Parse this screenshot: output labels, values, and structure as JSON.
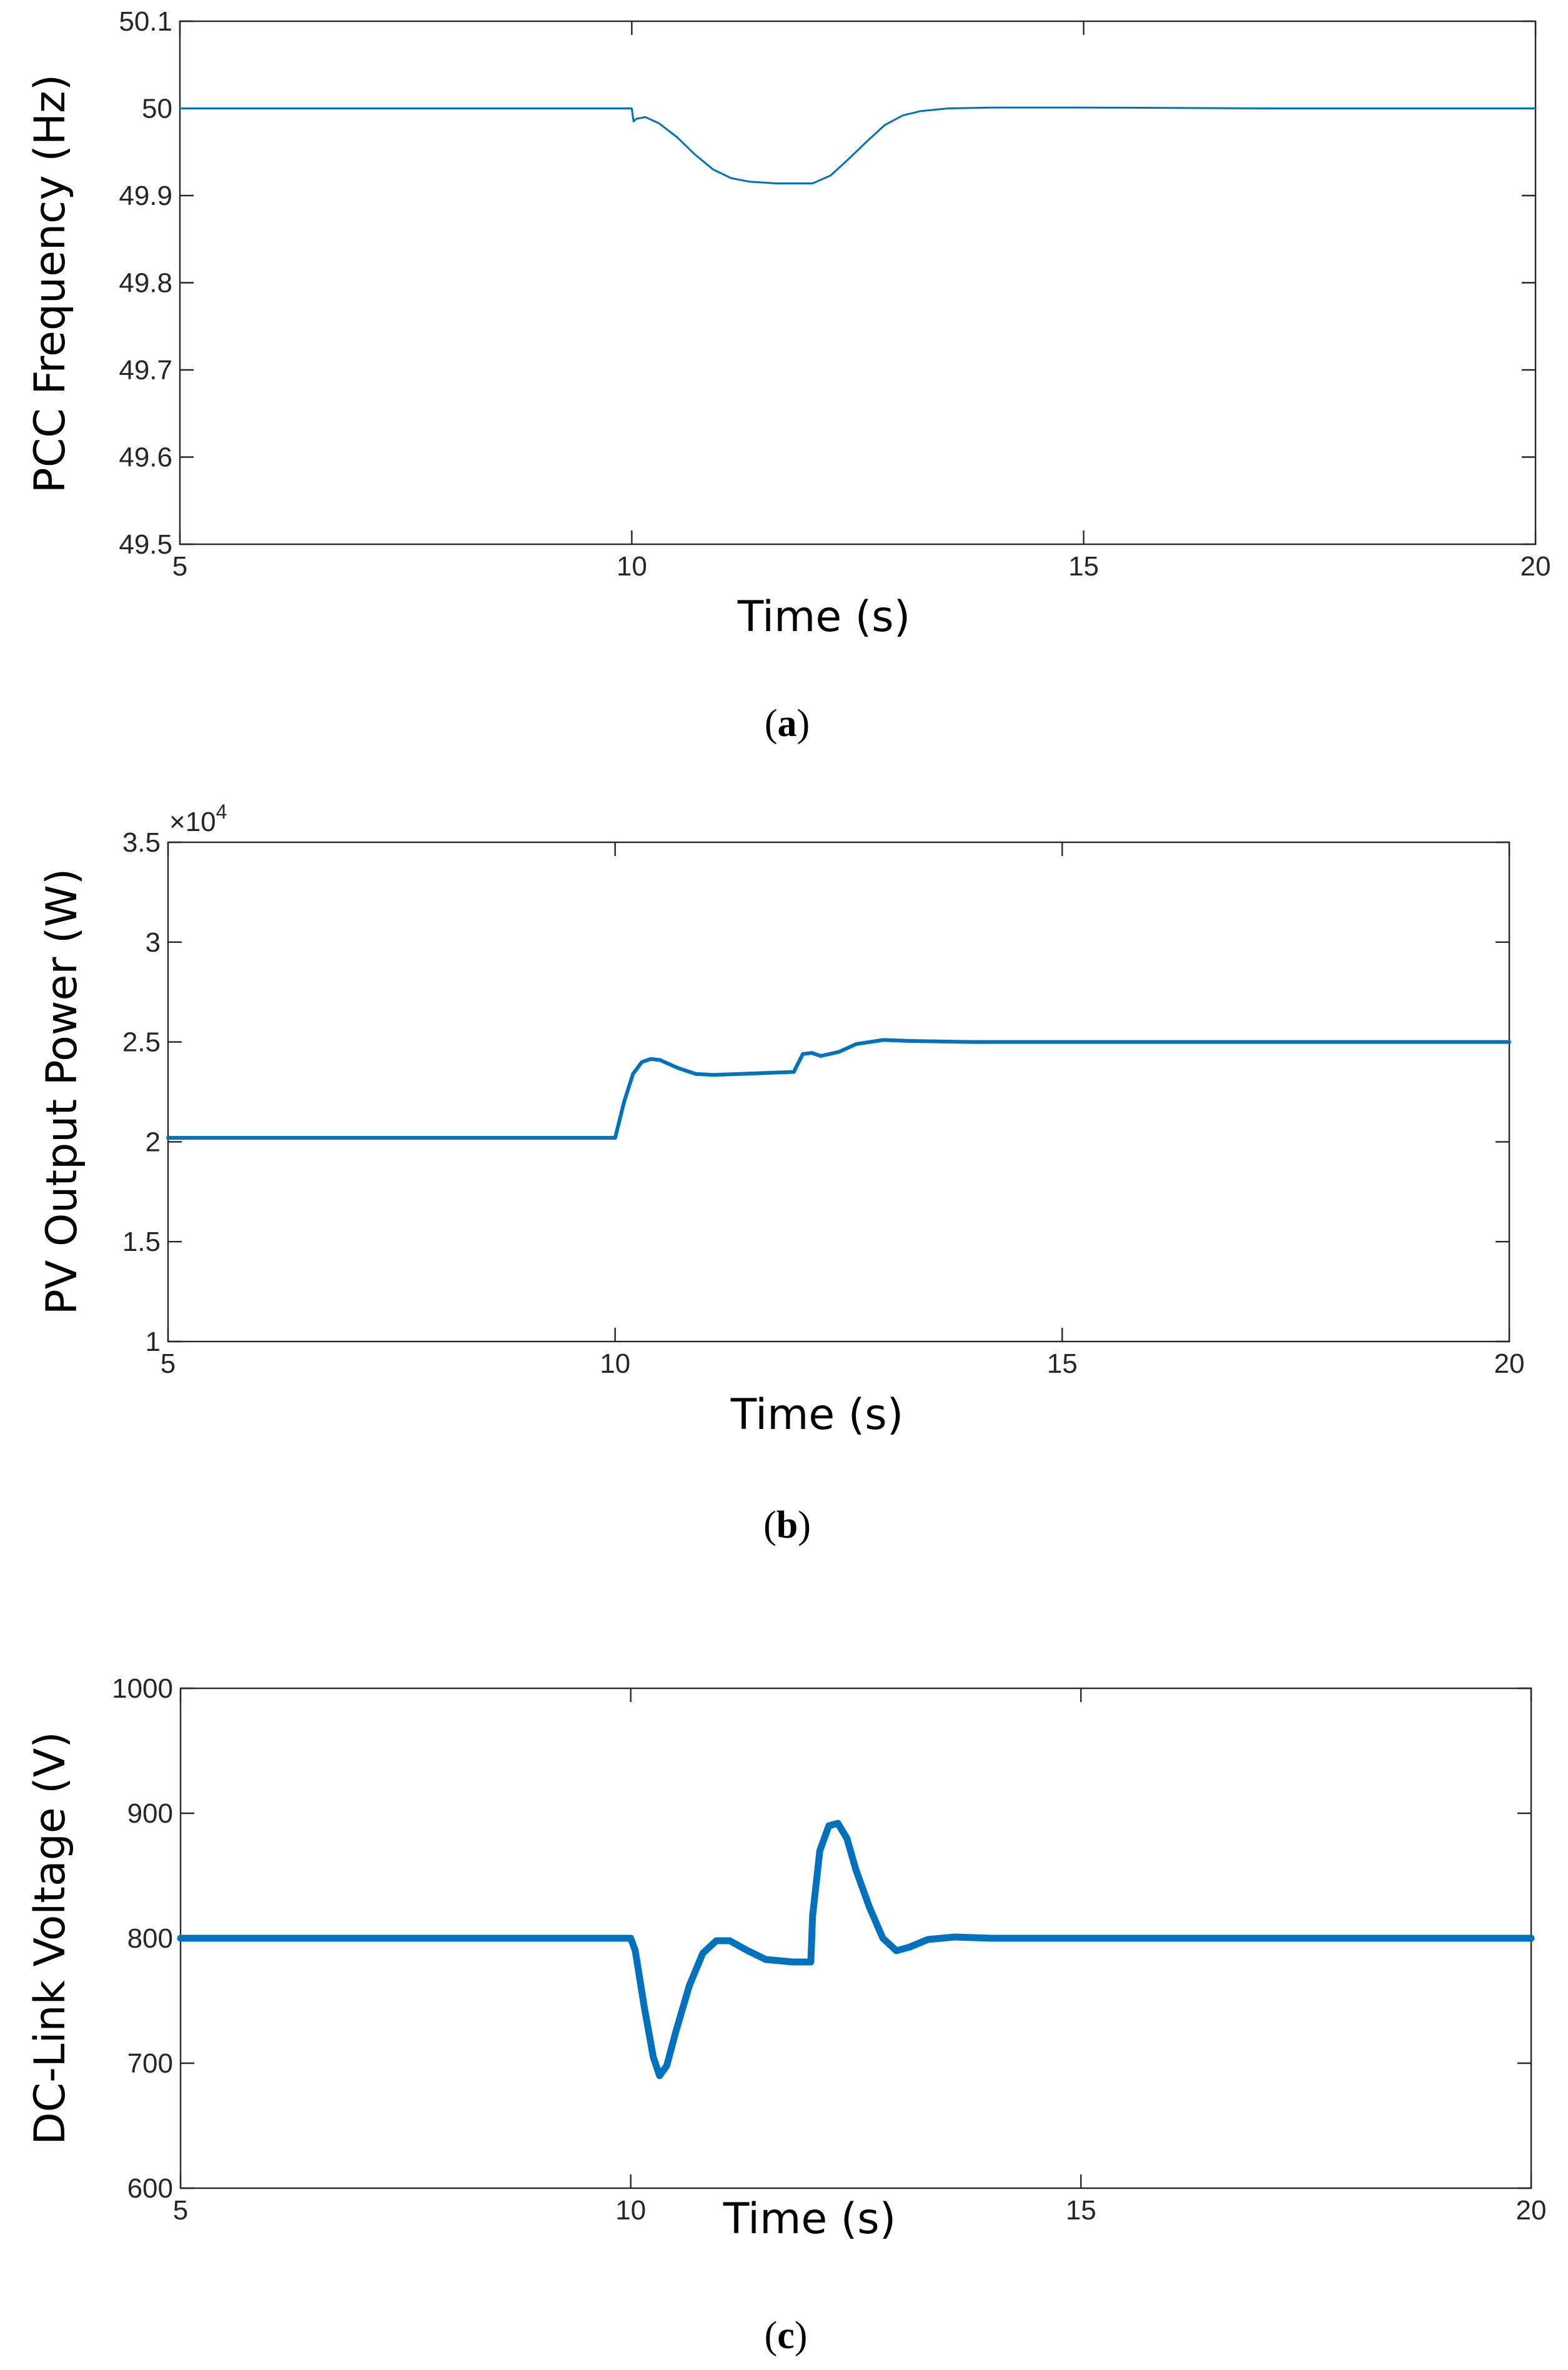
{
  "chart_data": [
    {
      "type": "line",
      "id": "a",
      "title": "",
      "xlabel": "Time (s)",
      "ylabel": "PCC Frequency (Hz)",
      "caption": "a",
      "xlim": [
        5,
        20
      ],
      "ylim": [
        49.5,
        50.1
      ],
      "xticks": [
        5,
        10,
        15,
        20
      ],
      "yticks": [
        49.5,
        49.6,
        49.7,
        49.8,
        49.9,
        50,
        50.1
      ],
      "xtick_labels": [
        "5",
        "10",
        "15",
        "20"
      ],
      "ytick_labels": [
        "49.5",
        "49.6",
        "49.7",
        "49.8",
        "49.9",
        "50",
        "50.1"
      ],
      "exponent_label": "",
      "color": "#0072BD",
      "series": [
        {
          "name": "PCC Frequency",
          "x": [
            5,
            10,
            10.02,
            10.05,
            10.15,
            10.3,
            10.5,
            10.7,
            10.9,
            11.1,
            11.3,
            11.6,
            12.0,
            12.2,
            12.4,
            12.6,
            12.8,
            13.0,
            13.2,
            13.5,
            14.0,
            15.0,
            17.0,
            20
          ],
          "values": [
            50.0,
            50.0,
            49.985,
            49.988,
            49.99,
            49.983,
            49.967,
            49.947,
            49.93,
            49.92,
            49.916,
            49.914,
            49.914,
            49.923,
            49.942,
            49.962,
            49.981,
            49.992,
            49.997,
            50.0,
            50.001,
            50.001,
            50.0,
            50.0
          ]
        }
      ]
    },
    {
      "type": "line",
      "id": "b",
      "title": "",
      "xlabel": "Time (s)",
      "ylabel": "PV Output Power (W)",
      "caption": "b",
      "xlim": [
        5,
        20
      ],
      "ylim": [
        1,
        3.5
      ],
      "xticks": [
        5,
        10,
        15,
        20
      ],
      "yticks": [
        1,
        1.5,
        2,
        2.5,
        3,
        3.5
      ],
      "xtick_labels": [
        "5",
        "10",
        "15",
        "20"
      ],
      "ytick_labels": [
        "1",
        "1.5",
        "2",
        "2.5",
        "3",
        "3.5"
      ],
      "exponent_label": "×10",
      "exponent_power": "4",
      "color": "#0072BD",
      "series": [
        {
          "name": "PV Output Power (×10^4 W)",
          "x": [
            5,
            10,
            10.1,
            10.2,
            10.3,
            10.4,
            10.5,
            10.7,
            10.9,
            11.1,
            11.4,
            11.7,
            12.0,
            12.02,
            12.1,
            12.2,
            12.3,
            12.5,
            12.7,
            13.0,
            13.3,
            14.0,
            16.0,
            20
          ],
          "values": [
            2.02,
            2.02,
            2.2,
            2.34,
            2.4,
            2.415,
            2.41,
            2.37,
            2.34,
            2.335,
            2.34,
            2.345,
            2.35,
            2.37,
            2.44,
            2.445,
            2.43,
            2.45,
            2.49,
            2.51,
            2.505,
            2.5,
            2.5,
            2.5
          ]
        }
      ]
    },
    {
      "type": "line",
      "id": "c",
      "title": "",
      "xlabel": "Time (s)",
      "ylabel": "DC-Link Voltage (V)",
      "caption": "c",
      "xlim": [
        5,
        20
      ],
      "ylim": [
        600,
        1000
      ],
      "xticks": [
        5,
        10,
        15,
        20
      ],
      "yticks": [
        600,
        700,
        800,
        900,
        1000
      ],
      "xtick_labels": [
        "5",
        "10",
        "15",
        "20"
      ],
      "ytick_labels": [
        "600",
        "700",
        "800",
        "900",
        "1000"
      ],
      "exponent_label": "",
      "color": "#0072BD",
      "series": [
        {
          "name": "DC-Link Voltage",
          "x": [
            5,
            10,
            10.05,
            10.15,
            10.25,
            10.32,
            10.4,
            10.5,
            10.65,
            10.8,
            10.95,
            11.1,
            11.3,
            11.5,
            11.8,
            12.0,
            12.02,
            12.1,
            12.2,
            12.3,
            12.4,
            12.5,
            12.65,
            12.8,
            12.95,
            13.1,
            13.3,
            13.6,
            14.0,
            15.0,
            20
          ],
          "values": [
            800,
            800,
            790,
            745,
            705,
            690,
            698,
            725,
            762,
            788,
            798,
            798,
            790,
            783,
            781,
            781,
            818,
            870,
            890,
            892,
            880,
            855,
            825,
            800,
            790,
            793,
            799,
            801,
            800,
            800,
            800
          ]
        }
      ]
    }
  ]
}
